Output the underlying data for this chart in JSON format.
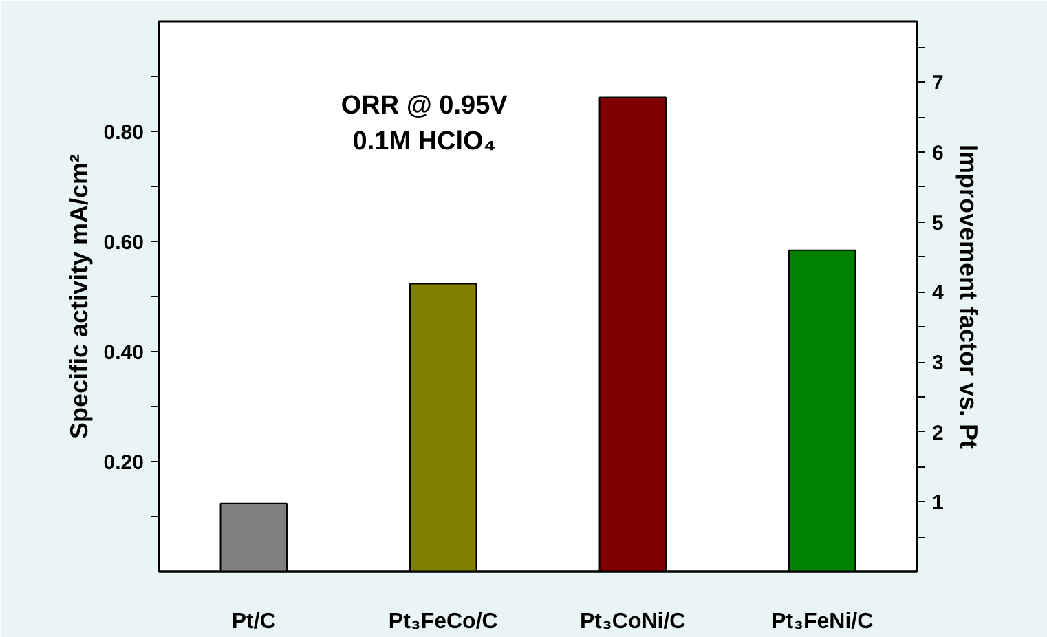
{
  "chart_data": {
    "type": "bar",
    "categories": [
      "Pt/C",
      "Pt₃FeCo/C",
      "Pt₃CoNi/C",
      "Pt₃FeNi/C"
    ],
    "values": [
      0.124,
      0.523,
      0.862,
      0.584
    ],
    "colors": [
      "#808080",
      "#808000",
      "#800000",
      "#008000"
    ],
    "ylabel": "Specific activity mA/cm²",
    "y2label": "Improvement factor vs. Pt",
    "ylim": [
      0,
      1.0
    ],
    "yticks": [
      {
        "value": 0.1,
        "label": null
      },
      {
        "value": 0.2,
        "label": "0.20"
      },
      {
        "value": 0.3,
        "label": null
      },
      {
        "value": 0.4,
        "label": "0.40"
      },
      {
        "value": 0.5,
        "label": null
      },
      {
        "value": 0.6,
        "label": "0.60"
      },
      {
        "value": 0.7,
        "label": null
      },
      {
        "value": 0.8,
        "label": "0.80"
      },
      {
        "value": 0.9,
        "label": null
      }
    ],
    "y2lim": [
      0,
      7.87
    ],
    "y2ticks": [
      {
        "value": 0.5,
        "label": null
      },
      1,
      {
        "value": 1.5,
        "label": null
      },
      2,
      {
        "value": 2.5,
        "label": null
      },
      3,
      {
        "value": 3.5,
        "label": null
      },
      4,
      {
        "value": 4.5,
        "label": null
      },
      5,
      {
        "value": 5.5,
        "label": null
      },
      6,
      {
        "value": 6.5,
        "label": null
      },
      7,
      {
        "value": 7.5,
        "label": null
      }
    ],
    "annotations": [
      "ORR @ 0.95V\n0.1M HClO₄"
    ],
    "grid": false
  }
}
